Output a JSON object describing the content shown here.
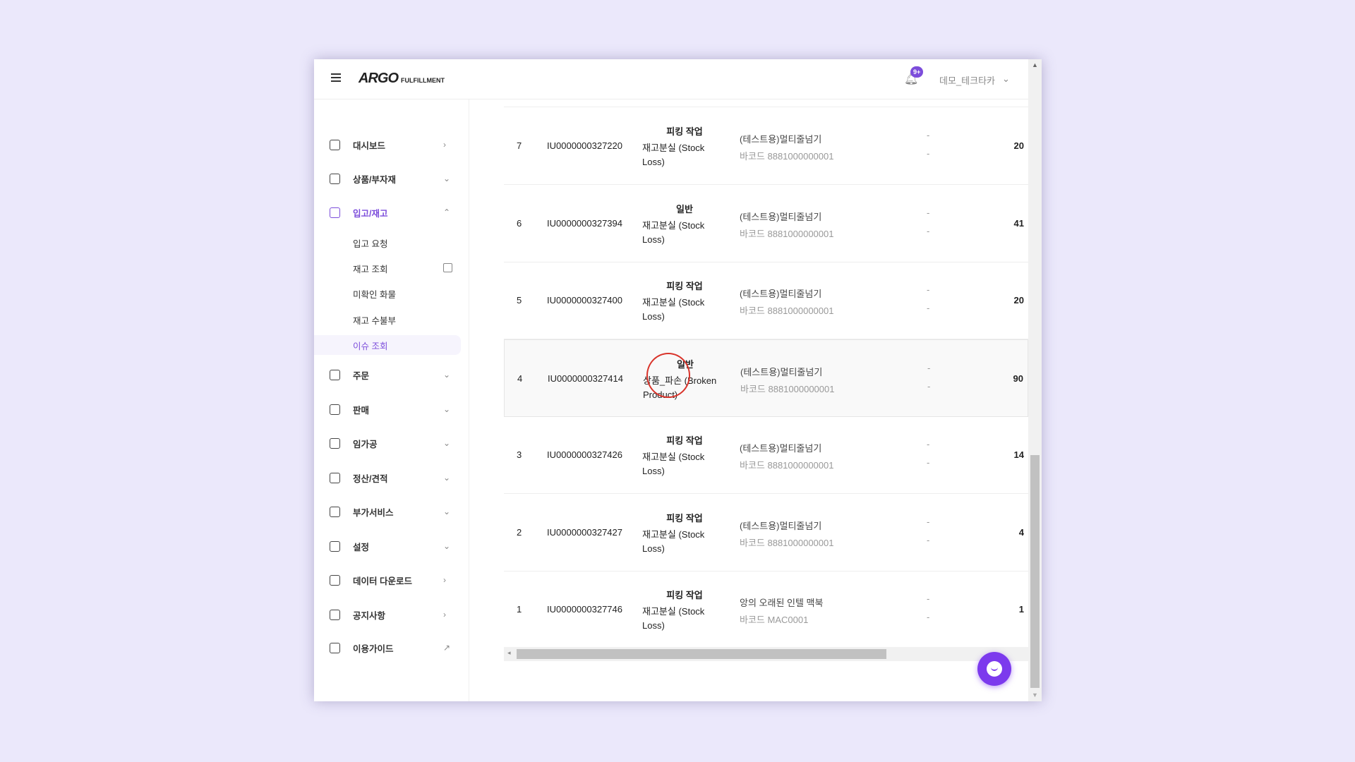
{
  "header": {
    "logo": "ARGO",
    "logo_sub": "FULFILLMENT",
    "badge": "9+",
    "user": "데모_테크타카"
  },
  "sidebar": {
    "items": [
      {
        "label": "대시보드",
        "icon": "home-icon",
        "chev": "›"
      },
      {
        "label": "상품/부자재",
        "icon": "bag-icon",
        "chev": "⌄"
      },
      {
        "label": "입고/재고",
        "icon": "warehouse-icon",
        "chev": "⌃",
        "active": true
      },
      {
        "label": "주문",
        "icon": "order-icon",
        "chev": "⌄"
      },
      {
        "label": "판매",
        "icon": "store-icon",
        "chev": "⌄"
      },
      {
        "label": "임가공",
        "icon": "inbox-icon",
        "chev": "⌄"
      },
      {
        "label": "정산/견적",
        "icon": "calculator-icon",
        "chev": "⌄"
      },
      {
        "label": "부가서비스",
        "icon": "chart-plus-icon",
        "chev": "⌄"
      },
      {
        "label": "설정",
        "icon": "gear-icon",
        "chev": "⌄"
      },
      {
        "label": "데이터 다운로드",
        "icon": "download-icon",
        "chev": "›"
      },
      {
        "label": "공지사항",
        "icon": "megaphone-icon",
        "chev": "›"
      },
      {
        "label": "이용가이드",
        "icon": "guide-icon",
        "chev": "↗"
      }
    ],
    "subitems": [
      {
        "label": "입고 요청"
      },
      {
        "label": "재고 조회",
        "external": true
      },
      {
        "label": "미확인 화물"
      },
      {
        "label": "재고 수불부"
      },
      {
        "label": "이슈 조회",
        "active": true
      }
    ]
  },
  "table": {
    "rows": [
      {
        "no": "7",
        "id": "IU0000000327220",
        "type": "피킹 작업",
        "reason1": "재고분실 (Stock",
        "reason2": "Loss)",
        "product": "(테스트용)멀티줄넘기",
        "barcode": "바코드 8881000000001",
        "d1": "-",
        "d2": "-",
        "qty": "20"
      },
      {
        "no": "6",
        "id": "IU0000000327394",
        "type": "일반",
        "reason1": "재고분실 (Stock",
        "reason2": "Loss)",
        "product": "(테스트용)멀티줄넘기",
        "barcode": "바코드 8881000000001",
        "d1": "-",
        "d2": "-",
        "qty": "41"
      },
      {
        "no": "5",
        "id": "IU0000000327400",
        "type": "피킹 작업",
        "reason1": "재고분실 (Stock",
        "reason2": "Loss)",
        "product": "(테스트용)멀티줄넘기",
        "barcode": "바코드 8881000000001",
        "d1": "-",
        "d2": "-",
        "qty": "20"
      },
      {
        "no": "4",
        "id": "IU0000000327414",
        "type": "일반",
        "reason1": "상품_파손 (Broken",
        "reason2": "Product)",
        "product": "(테스트용)멀티줄넘기",
        "barcode": "바코드 8881000000001",
        "d1": "-",
        "d2": "-",
        "qty": "90",
        "highlight": true
      },
      {
        "no": "3",
        "id": "IU0000000327426",
        "type": "피킹 작업",
        "reason1": "재고분실 (Stock",
        "reason2": "Loss)",
        "product": "(테스트용)멀티줄넘기",
        "barcode": "바코드 8881000000001",
        "d1": "-",
        "d2": "-",
        "qty": "14"
      },
      {
        "no": "2",
        "id": "IU0000000327427",
        "type": "피킹 작업",
        "reason1": "재고분실 (Stock",
        "reason2": "Loss)",
        "product": "(테스트용)멀티줄넘기",
        "barcode": "바코드 8881000000001",
        "d1": "-",
        "d2": "-",
        "qty": "4"
      },
      {
        "no": "1",
        "id": "IU0000000327746",
        "type": "피킹 작업",
        "reason1": "재고분실 (Stock",
        "reason2": "Loss)",
        "product": "앙의 오래된 인텔 맥북",
        "barcode": "바코드 MAC0001",
        "d1": "-",
        "d2": "-",
        "qty": "1"
      }
    ]
  },
  "colors": {
    "accent": "#7c4ddb",
    "annotation": "#d9342b"
  }
}
